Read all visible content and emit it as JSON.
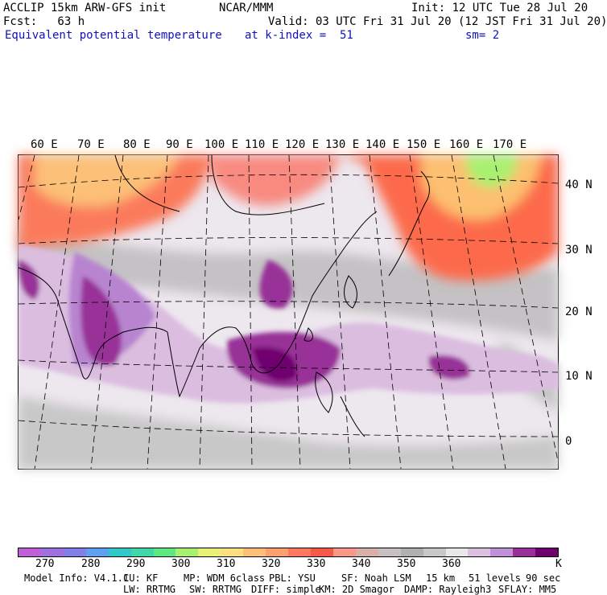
{
  "header": {
    "line1_left": "ACCLIP 15km ARW-GFS init",
    "line1_mid": "NCAR/MMM",
    "line1_right": "Init: 12 UTC Tue 28 Jul 20",
    "line2_left": "Fcst:   63 h",
    "line2_right": "Valid: 03 UTC Fri 31 Jul 20 (12 JST Fri 31 Jul 20)",
    "line3_left": "Equivalent potential temperature",
    "line3_mid": "at k-index =  51",
    "line3_right": "sm= 2"
  },
  "map": {
    "lon_labels": [
      "60 E",
      "70 E",
      "80 E",
      "90 E",
      "100 E",
      "110 E",
      "120 E",
      "130 E",
      "140 E",
      "150 E",
      "160 E",
      "170 E"
    ],
    "lat_labels": [
      "40 N",
      "30 N",
      "20 N",
      "10 N",
      "0"
    ]
  },
  "colorbar": {
    "colors": [
      "#c060d8",
      "#a070e0",
      "#8080e8",
      "#60a0f0",
      "#30c8c8",
      "#40d8a8",
      "#60e880",
      "#a8f070",
      "#e8f078",
      "#fce080",
      "#fcc078",
      "#fca070",
      "#fc7860",
      "#f85848",
      "#f89888",
      "#d8b0a8",
      "#c8c0c0",
      "#b0b0b0",
      "#c8c8c8",
      "#e8e8e8",
      "#dcc0e0",
      "#c090d8",
      "#983098",
      "#700070"
    ],
    "tick_labels": [
      "270",
      "280",
      "290",
      "300",
      "310",
      "320",
      "330",
      "340",
      "350",
      "360"
    ],
    "unit": "K"
  },
  "footer": {
    "line1": [
      "Model Info: V4.1.1",
      "CU: KF",
      "MP: WDM 6class",
      "PBL: YSU",
      "SF: Noah LSM",
      "15 km",
      "51 levels",
      "90 sec"
    ],
    "line2": [
      "LW: RRTMG",
      "SW: RRTMG",
      "DIFF: simple",
      "KM: 2D Smagor",
      "DAMP: Rayleigh3",
      "SFLAY: MM5"
    ]
  }
}
